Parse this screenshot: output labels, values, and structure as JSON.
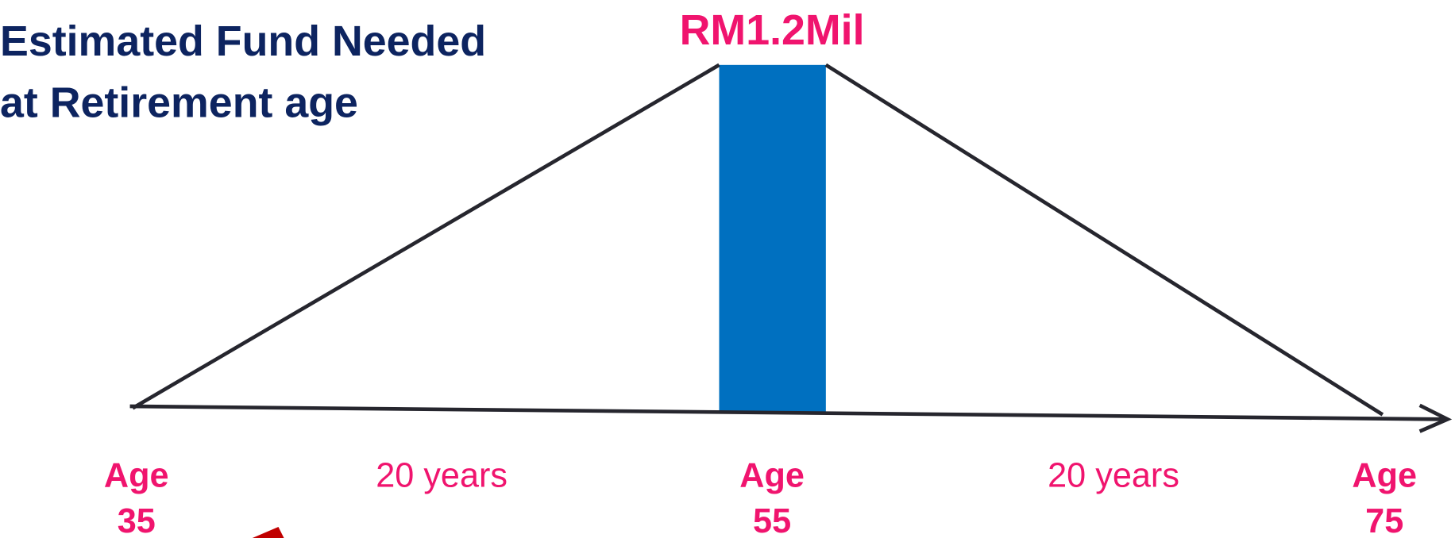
{
  "title_lines": [
    "Estimated Fund Needed",
    "at Retirement age"
  ],
  "amount": "RM1.2Mil",
  "milestones": [
    {
      "label": "Age",
      "age": "35"
    },
    {
      "label": "Age",
      "age": "55"
    },
    {
      "label": "Age",
      "age": "75"
    }
  ],
  "periods": [
    "20 years",
    "20 years"
  ]
}
